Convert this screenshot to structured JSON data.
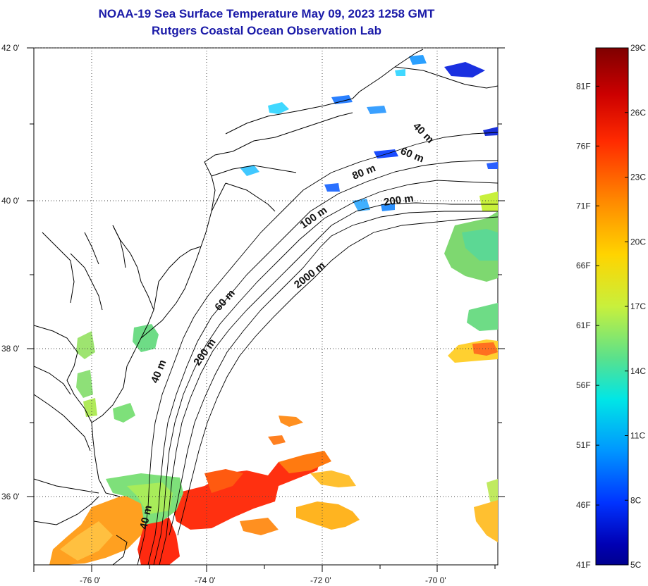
{
  "title": {
    "line1": "NOAA-19 Sea Surface Temperature May 09, 2023 1258 GMT",
    "line2": "Rutgers Coastal Ocean Observation Lab"
  },
  "map": {
    "lon_range": [
      -76.8,
      -68.9
    ],
    "lat_range": [
      35.0,
      42.0
    ],
    "x_tick_labels": [
      {
        "lon": -76,
        "label": "-76 0'"
      },
      {
        "lon": -74,
        "label": "-74 0'"
      },
      {
        "lon": -72,
        "label": "-72 0'"
      },
      {
        "lon": -70,
        "label": "-70 0'"
      }
    ],
    "y_tick_labels": [
      {
        "lat": 42,
        "label": "42 0'"
      },
      {
        "lat": 40,
        "label": "40 0'"
      },
      {
        "lat": 38,
        "label": "38 0'"
      },
      {
        "lat": 36,
        "label": "36 0'"
      }
    ],
    "gridlines": "dotted",
    "contour_labels": [
      "40 m",
      "60 m",
      "80 m",
      "200 m",
      "100 m",
      "2000 m",
      "60 m",
      "200 m",
      "40 m",
      "40 m"
    ]
  },
  "colorbar": {
    "range_c": [
      5,
      29
    ],
    "celsius_labels": [
      "29C",
      "26C",
      "23C",
      "20C",
      "17C",
      "14C",
      "11C",
      "8C",
      "5C"
    ],
    "fahrenheit_labels": [
      "81F",
      "76F",
      "71F",
      "66F",
      "61F",
      "56F",
      "51F",
      "46F",
      "41F"
    ],
    "colors": [
      "#7f0000",
      "#cc0000",
      "#ff2a00",
      "#ff8c00",
      "#ffd400",
      "#c8f03c",
      "#5ae18c",
      "#00e6e6",
      "#0096ff",
      "#0033ff",
      "#0000b4",
      "#00008f"
    ]
  }
}
